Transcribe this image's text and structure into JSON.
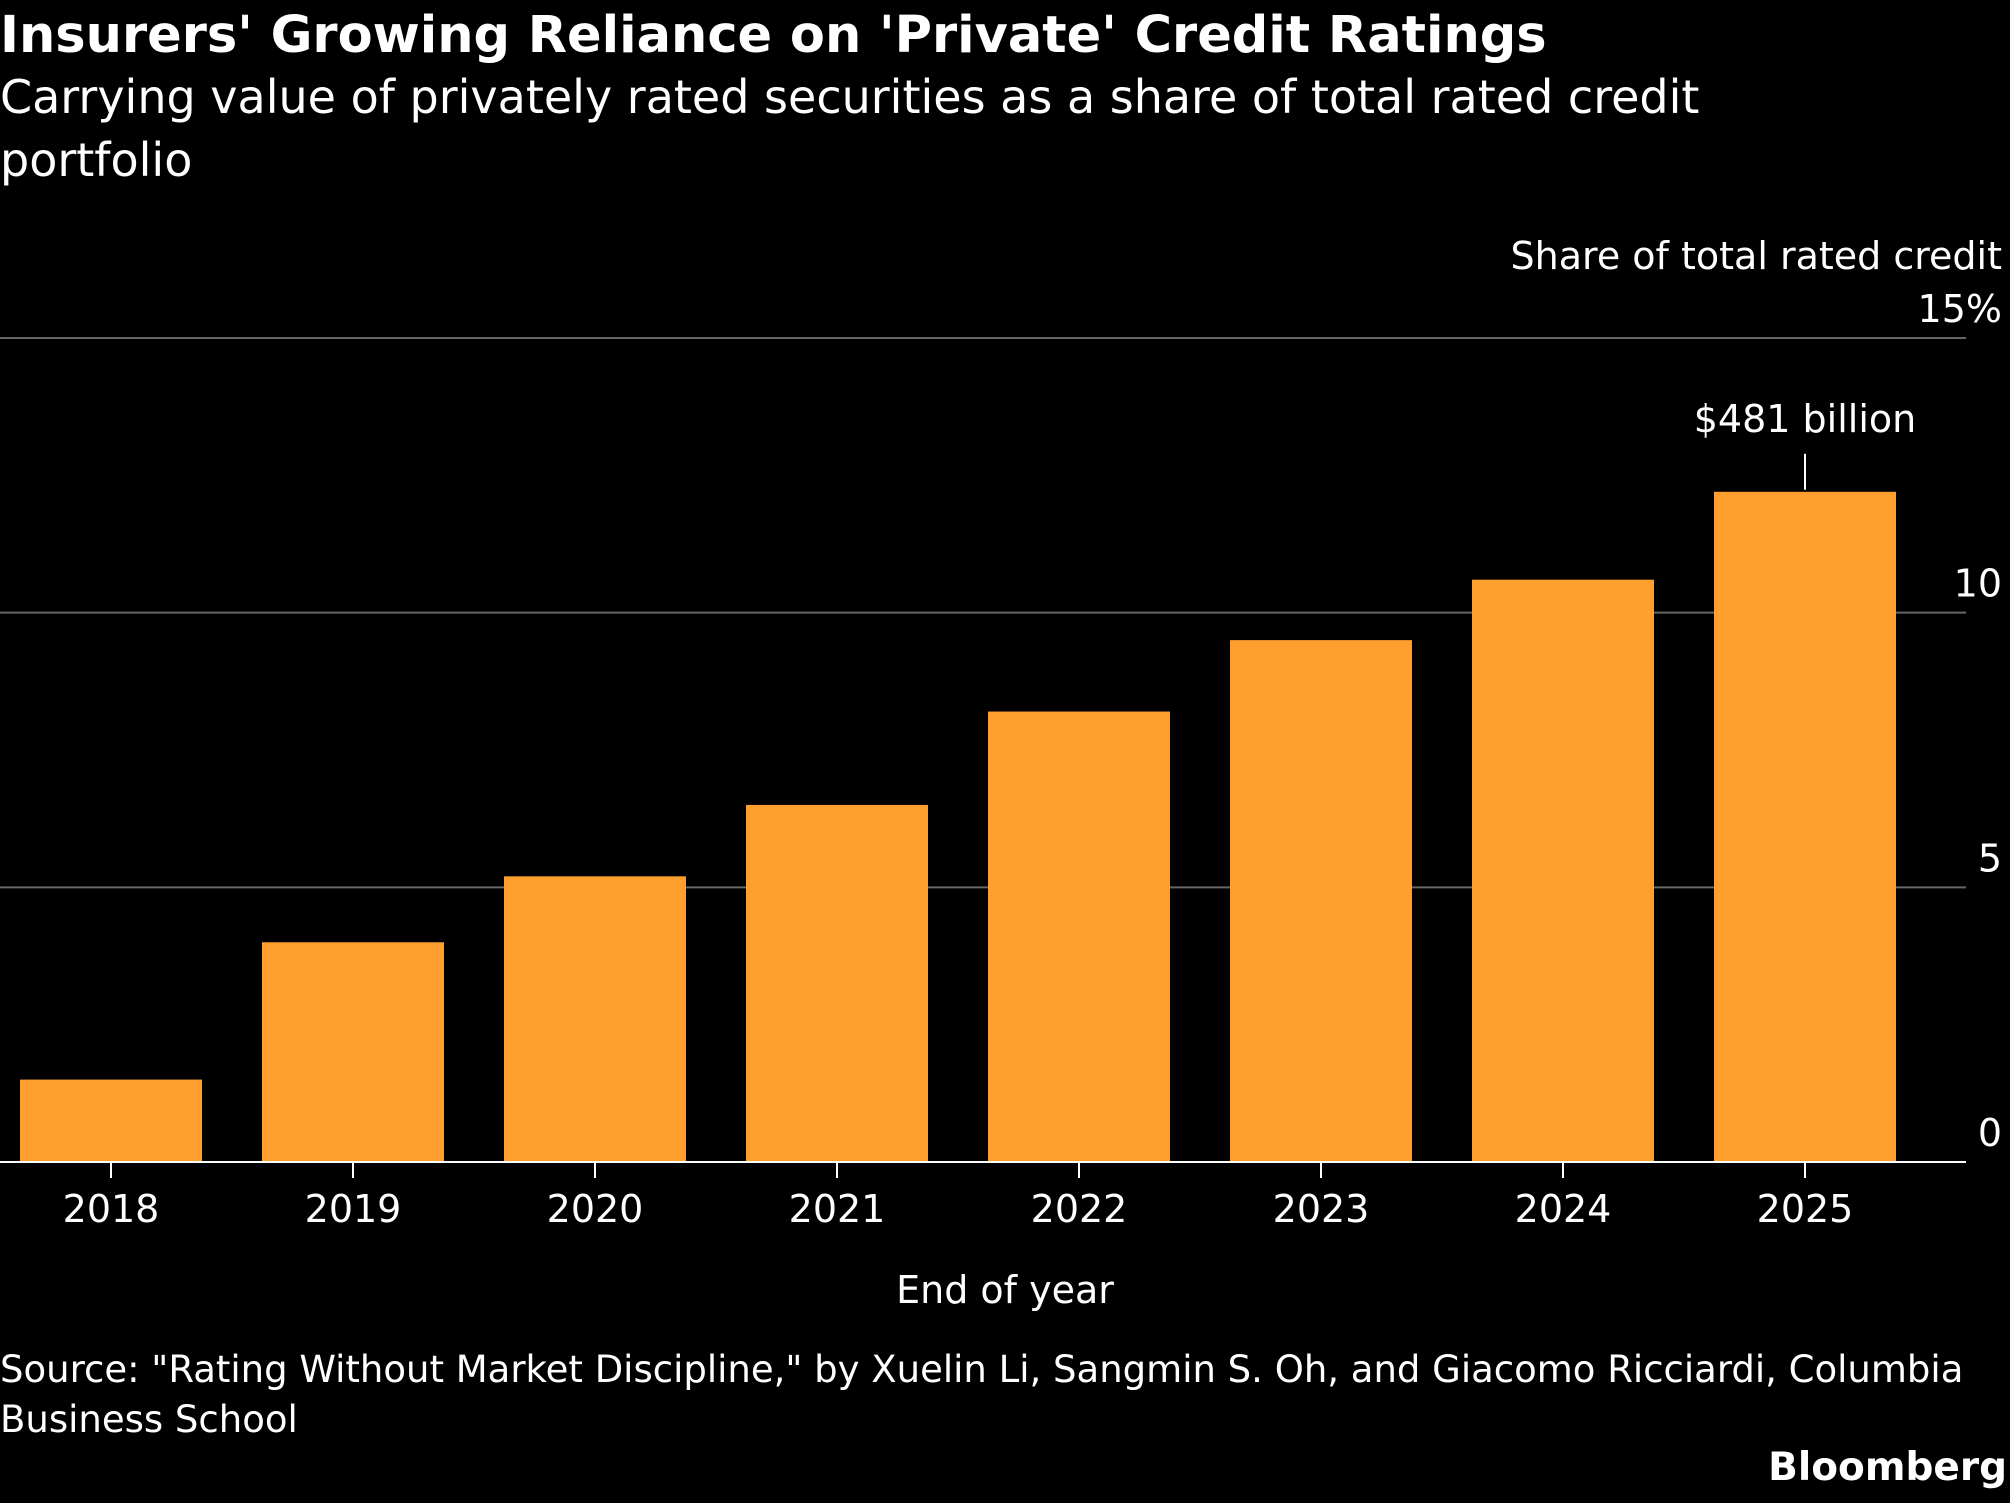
{
  "title": "Insurers' Growing Reliance on 'Private' Credit Ratings",
  "subtitle": "Carrying value of privately rated securities as a share of total rated credit portfolio",
  "source": "Source: \"Rating Without Market Discipline,\" by Xuelin Li, Sangmin S. Oh, and Giacomo Ricciardi, Columbia Business School",
  "brand": "Bloomberg",
  "colors": {
    "background": "#000000",
    "bar": "#FFA02E",
    "text": "#FFFFFF",
    "grid": "#666666"
  },
  "chart_data": {
    "type": "bar",
    "categories": [
      "2018",
      "2019",
      "2020",
      "2021",
      "2022",
      "2023",
      "2024",
      "2025"
    ],
    "values": [
      1.5,
      4.0,
      5.2,
      6.5,
      8.2,
      9.5,
      10.6,
      12.2
    ],
    "ylabel": "Share of total rated credit",
    "xlabel": "End of year",
    "ylim": [
      0,
      15
    ],
    "yticks": [
      0,
      5,
      10,
      15
    ],
    "ytick_labels": [
      "0",
      "5",
      "10",
      "15%"
    ],
    "y_axis_side": "right",
    "grid": true,
    "annotations": [
      {
        "category": "2025",
        "text": "$481 billion"
      }
    ]
  }
}
